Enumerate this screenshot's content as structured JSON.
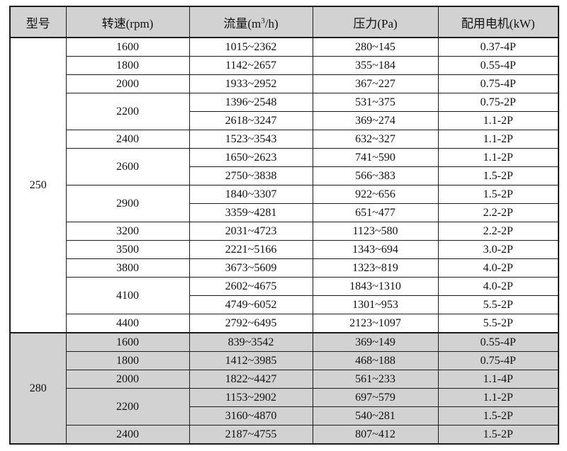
{
  "colors": {
    "header_bg": "#d2d2d2",
    "section_280_bg": "#d2d2d2",
    "border": "#1c1c1c",
    "page_bg": "#ffffff"
  },
  "table": {
    "header": {
      "model": "型号",
      "speed": "转速(rpm)",
      "flow_prefix": "流量(m",
      "flow_sup": "3",
      "flow_suffix": "/h)",
      "pressure": "压力(Pa)",
      "motor": "配用电机(kW)"
    },
    "sections": [
      {
        "model": "250",
        "gray": false,
        "groups": [
          {
            "speed": "1600",
            "rows": [
              {
                "flow": "1015~2362",
                "pressure": "280~145",
                "motor": "0.37-4P"
              }
            ]
          },
          {
            "speed": "1800",
            "rows": [
              {
                "flow": "1142~2657",
                "pressure": "355~184",
                "motor": "0.55-4P"
              }
            ]
          },
          {
            "speed": "2000",
            "rows": [
              {
                "flow": "1933~2952",
                "pressure": "367~227",
                "motor": "0.75-4P"
              }
            ]
          },
          {
            "speed": "2200",
            "rows": [
              {
                "flow": "1396~2548",
                "pressure": "531~375",
                "motor": "0.75-2P"
              },
              {
                "flow": "2618~3247",
                "pressure": "369~274",
                "motor": "1.1-2P"
              }
            ]
          },
          {
            "speed": "2400",
            "rows": [
              {
                "flow": "1523~3543",
                "pressure": "632~327",
                "motor": "1.1-2P"
              }
            ]
          },
          {
            "speed": "2600",
            "rows": [
              {
                "flow": "1650~2623",
                "pressure": "741~590",
                "motor": "1.1-2P"
              },
              {
                "flow": "2750~3838",
                "pressure": "566~383",
                "motor": "1.5-2P"
              }
            ]
          },
          {
            "speed": "2900",
            "rows": [
              {
                "flow": "1840~3307",
                "pressure": "922~656",
                "motor": "1.5-2P"
              },
              {
                "flow": "3359~4281",
                "pressure": "651~477",
                "motor": "2.2-2P"
              }
            ]
          },
          {
            "speed": "3200",
            "rows": [
              {
                "flow": "2031~4723",
                "pressure": "1123~580",
                "motor": "2.2-2P"
              }
            ]
          },
          {
            "speed": "3500",
            "rows": [
              {
                "flow": "2221~5166",
                "pressure": "1343~694",
                "motor": "3.0-2P"
              }
            ]
          },
          {
            "speed": "3800",
            "rows": [
              {
                "flow": "3673~5609",
                "pressure": "1323~819",
                "motor": "4.0-2P"
              }
            ]
          },
          {
            "speed": "4100",
            "rows": [
              {
                "flow": "2602~4675",
                "pressure": "1843~1310",
                "motor": "4.0-2P"
              },
              {
                "flow": "4749~6052",
                "pressure": "1301~953",
                "motor": "5.5-2P"
              }
            ]
          },
          {
            "speed": "4400",
            "rows": [
              {
                "flow": "2792~6495",
                "pressure": "2123~1097",
                "motor": "5.5-2P"
              }
            ]
          }
        ]
      },
      {
        "model": "280",
        "gray": true,
        "groups": [
          {
            "speed": "1600",
            "rows": [
              {
                "flow": "839~3542",
                "pressure": "369~149",
                "motor": "0.55-4P"
              }
            ]
          },
          {
            "speed": "1800",
            "rows": [
              {
                "flow": "1412~3985",
                "pressure": "468~188",
                "motor": "0.75-4P"
              }
            ]
          },
          {
            "speed": "2000",
            "rows": [
              {
                "flow": "1822~4427",
                "pressure": "561~233",
                "motor": "1.1-4P"
              }
            ]
          },
          {
            "speed": "2200",
            "rows": [
              {
                "flow": "1153~2902",
                "pressure": "697~579",
                "motor": "1.1-2P"
              },
              {
                "flow": "3160~4870",
                "pressure": "540~281",
                "motor": "1.5-2P"
              }
            ]
          },
          {
            "speed": "2400",
            "rows": [
              {
                "flow": "2187~4755",
                "pressure": "807~412",
                "motor": "1.5-2P"
              }
            ]
          }
        ]
      }
    ]
  }
}
